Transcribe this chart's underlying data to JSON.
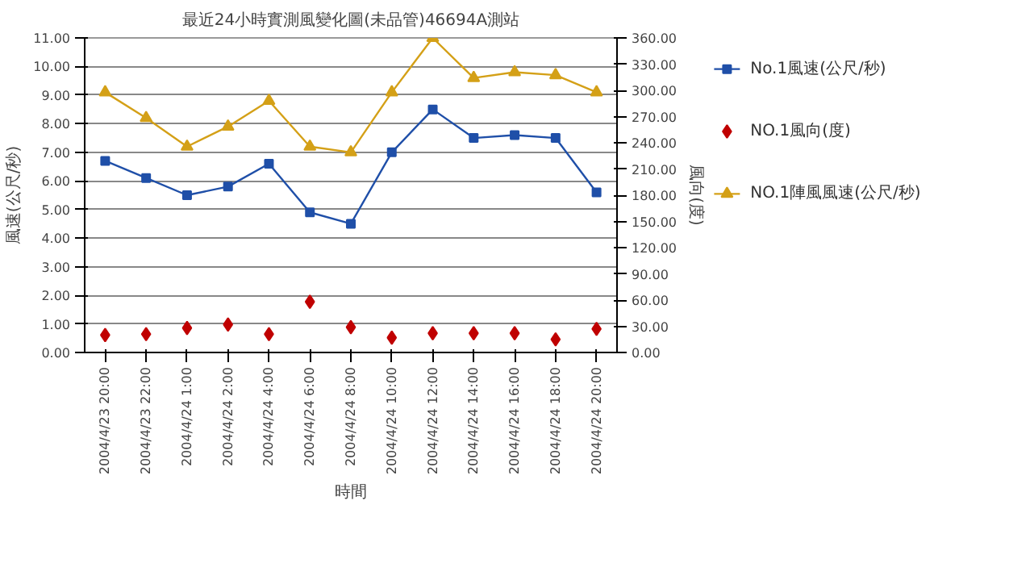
{
  "chart_data": {
    "type": "line",
    "title": "最近24小時實測風變化圖(未品管)46694A測站",
    "xlabel": "時間",
    "ylabel": "風速(公尺/秒)",
    "y2label": "風向(度)",
    "categories": [
      "2004/4/23 20:00",
      "2004/4/23 22:00",
      "2004/4/24 1:00",
      "2004/4/24 2:00",
      "2004/4/24 4:00",
      "2004/4/24 6:00",
      "2004/4/24 8:00",
      "2004/4/24 10:00",
      "2004/4/24 12:00",
      "2004/4/24 14:00",
      "2004/4/24 16:00",
      "2004/4/24 18:00",
      "2004/4/24 20:00"
    ],
    "series": [
      {
        "name": "No.1風速(公尺/秒)",
        "marker": "square",
        "color": "#1f4fa8",
        "values": [
          6.7,
          6.1,
          5.5,
          5.8,
          6.6,
          4.9,
          4.5,
          7.0,
          8.5,
          7.5,
          7.6,
          7.5,
          5.6
        ]
      },
      {
        "name": "NO.1風向(度)",
        "type": "scatter",
        "marker": "diamond",
        "axis": "y2",
        "color": "#c00000",
        "values": [
          20,
          21,
          28,
          32,
          21,
          58,
          29,
          17,
          22,
          22,
          22,
          15,
          27
        ]
      },
      {
        "name": "NO.1陣風風速(公尺/秒)",
        "marker": "triangle",
        "color": "#d4a017",
        "values": [
          9.1,
          8.2,
          7.2,
          7.9,
          8.8,
          7.2,
          7.0,
          9.1,
          11.0,
          9.6,
          9.8,
          9.7,
          9.1
        ]
      }
    ],
    "ylim": [
      0,
      11
    ],
    "yticks": [
      {
        "value": 0,
        "label": "0.00"
      },
      {
        "value": 1,
        "label": "1.00"
      },
      {
        "value": 2,
        "label": "2.00"
      },
      {
        "value": 3,
        "label": "3.00"
      },
      {
        "value": 4,
        "label": "4.00"
      },
      {
        "value": 5,
        "label": "5.00"
      },
      {
        "value": 6,
        "label": "6.00"
      },
      {
        "value": 7,
        "label": "7.00"
      },
      {
        "value": 8,
        "label": "8.00"
      },
      {
        "value": 9,
        "label": "9.00"
      },
      {
        "value": 10,
        "label": "10.00"
      },
      {
        "value": 11,
        "label": "11.00"
      }
    ],
    "y2lim": [
      0,
      360
    ],
    "y2ticks": [
      {
        "value": 0,
        "label": "0.00"
      },
      {
        "value": 30,
        "label": "30.00"
      },
      {
        "value": 60,
        "label": "60.00"
      },
      {
        "value": 90,
        "label": "90.00"
      },
      {
        "value": 120,
        "label": "120.00"
      },
      {
        "value": 150,
        "label": "150.00"
      },
      {
        "value": 180,
        "label": "180.00"
      },
      {
        "value": 210,
        "label": "210.00"
      },
      {
        "value": 240,
        "label": "240.00"
      },
      {
        "value": 270,
        "label": "270.00"
      },
      {
        "value": 300,
        "label": "300.00"
      },
      {
        "value": 330,
        "label": "330.00"
      },
      {
        "value": 360,
        "label": "360.00"
      }
    ],
    "grid": "y",
    "legend": "right"
  }
}
